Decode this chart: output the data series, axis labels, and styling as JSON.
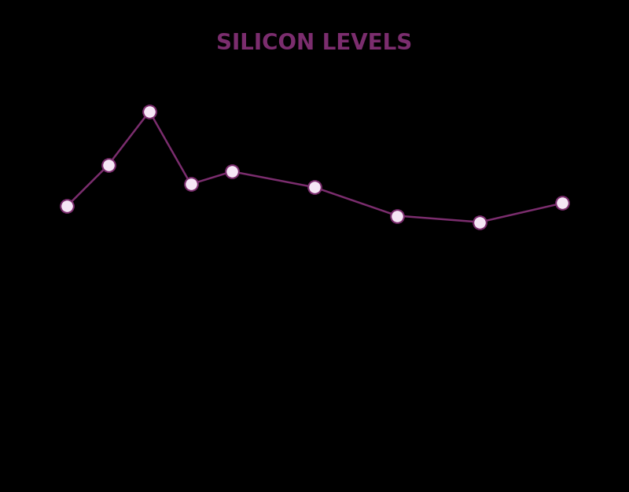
{
  "title": "SILICON LEVELS",
  "title_color": "#7B2D6E",
  "title_fontsize": 20,
  "background_color": "#000000",
  "line_color": "#7B2D6E",
  "marker_face_color": "#F5E6F5",
  "marker_edge_color": "#7B2D6E",
  "x_values": [
    0,
    0.5,
    1.0,
    1.5,
    2.0,
    3.0,
    4.0,
    5.0,
    6.0
  ],
  "y_values": [
    2.35,
    2.48,
    2.65,
    2.42,
    2.46,
    2.41,
    2.32,
    2.3,
    2.36
  ],
  "line_width": 1.8,
  "marker_size": 12,
  "marker_edge_width": 1.5,
  "xlim": [
    -0.2,
    6.5
  ],
  "ylim": [
    2.1,
    2.8
  ]
}
